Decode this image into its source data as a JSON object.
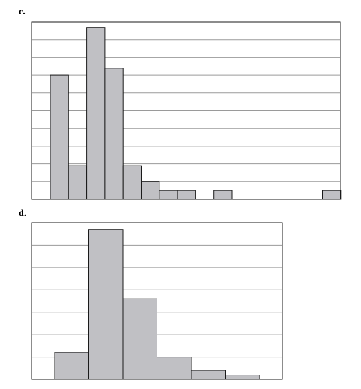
{
  "panels": {
    "c": {
      "label": "c."
    },
    "d": {
      "label": "d."
    }
  },
  "colors": {
    "bar_fill": "#c0c0c4",
    "bar_stroke": "#1a1a1a",
    "grid": "#9a9a9a",
    "frame": "#1a1a1a"
  },
  "chart_data": [
    {
      "type": "bar",
      "title": "",
      "xlabel": "",
      "ylabel": "",
      "bin_count": 17,
      "values": [
        7,
        1.9,
        9.7,
        7.4,
        1.9,
        1,
        0.5,
        0.5,
        0,
        0.5,
        0,
        0,
        0,
        0,
        0,
        0.5,
        0
      ],
      "ylim": [
        0,
        10
      ],
      "grid": true,
      "gridlines": 9,
      "legend": "none"
    },
    {
      "type": "bar",
      "title": "",
      "xlabel": "",
      "ylabel": "",
      "bin_count": 7,
      "values": [
        1.2,
        6.7,
        3.6,
        1,
        0.4,
        0.2,
        0
      ],
      "ylim": [
        0,
        7
      ],
      "grid": true,
      "gridlines": 6,
      "legend": "none"
    }
  ]
}
